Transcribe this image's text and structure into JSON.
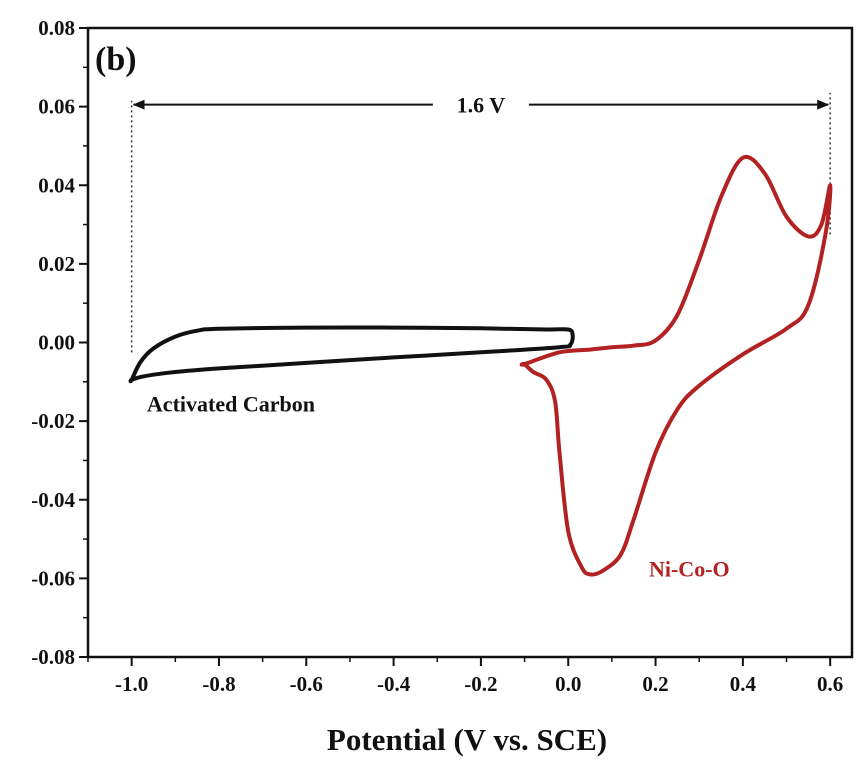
{
  "chart_data": {
    "type": "line",
    "panel_label": "(b)",
    "title": "",
    "xlabel": "Potential (V vs. SCE)",
    "ylabel": "",
    "xlim": [
      -1.1,
      0.65
    ],
    "ylim": [
      -0.08,
      0.08
    ],
    "x_ticks": [
      -1.0,
      -0.8,
      -0.6,
      -0.4,
      -0.2,
      0.0,
      0.2,
      0.4,
      0.6
    ],
    "x_tick_labels": [
      "-1.0",
      "-0.8",
      "-0.6",
      "-0.4",
      "-0.2",
      "0.0",
      "0.2",
      "0.4",
      "0.6"
    ],
    "y_ticks": [
      -0.08,
      -0.06,
      -0.04,
      -0.02,
      0.0,
      0.02,
      0.04,
      0.06,
      0.08
    ],
    "y_tick_labels": [
      "-0.08",
      "-0.06",
      "-0.04",
      "-0.02",
      "0.00",
      "0.02",
      "0.04",
      "0.06",
      "0.08"
    ],
    "grid": false,
    "series": [
      {
        "name": "Activated Carbon",
        "color": "#111111",
        "closed": true,
        "x": [
          -1.0,
          -0.98,
          -0.95,
          -0.9,
          -0.85,
          -0.8,
          -0.6,
          -0.4,
          -0.2,
          -0.05,
          0.0,
          0.01,
          0.005,
          -0.02,
          -0.2,
          -0.4,
          -0.6,
          -0.8,
          -0.9,
          -0.95,
          -0.98,
          -1.0
        ],
        "y": [
          -0.0095,
          -0.005,
          -0.0015,
          0.0015,
          0.003,
          0.0035,
          0.0038,
          0.0038,
          0.0036,
          0.0033,
          0.0033,
          0.002,
          -0.0005,
          -0.0012,
          -0.0025,
          -0.0038,
          -0.0052,
          -0.0066,
          -0.0075,
          -0.0082,
          -0.0088,
          -0.0095
        ]
      },
      {
        "name": "Ni-Co-O",
        "color": "#b22222",
        "closed": true,
        "x": [
          -0.1,
          -0.02,
          0.05,
          0.1,
          0.15,
          0.2,
          0.25,
          0.3,
          0.35,
          0.4,
          0.45,
          0.5,
          0.55,
          0.58,
          0.6,
          0.59,
          0.55,
          0.5,
          0.4,
          0.3,
          0.25,
          0.2,
          0.15,
          0.12,
          0.08,
          0.05,
          0.03,
          0.0,
          -0.02,
          -0.03,
          -0.05,
          -0.08,
          -0.1
        ],
        "y": [
          -0.0055,
          -0.0025,
          -0.0018,
          -0.0012,
          -0.0008,
          0.0005,
          0.007,
          0.021,
          0.037,
          0.047,
          0.043,
          0.032,
          0.027,
          0.03,
          0.04,
          0.028,
          0.0095,
          0.0035,
          -0.003,
          -0.011,
          -0.017,
          -0.028,
          -0.045,
          -0.054,
          -0.058,
          -0.059,
          -0.057,
          -0.048,
          -0.028,
          -0.015,
          -0.0095,
          -0.0075,
          -0.0055
        ]
      }
    ],
    "annotations": [
      {
        "text": "1.6 V",
        "type": "double-arrow",
        "x_from": -1.0,
        "x_to": 0.6,
        "y": 0.0605
      },
      {
        "text": "Activated Carbon",
        "type": "label",
        "x": -0.965,
        "y": -0.0155,
        "color": "#111111"
      },
      {
        "text": "Ni-Co-O",
        "type": "label",
        "x": 0.185,
        "y": -0.0575,
        "color": "#b22222"
      }
    ],
    "reference_lines": [
      {
        "x": -1.0,
        "y_from": -0.0025,
        "y_to": 0.0615,
        "style": "dotted"
      },
      {
        "x": 0.6,
        "y_from": 0.0275,
        "y_to": 0.0635,
        "style": "dotted"
      }
    ]
  }
}
